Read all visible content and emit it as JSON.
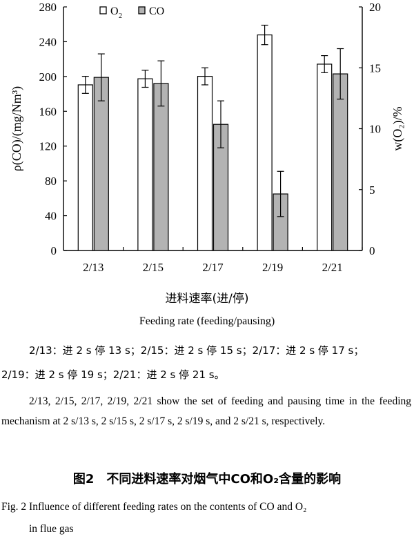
{
  "chart_data": {
    "type": "bar",
    "categories": [
      "2/13",
      "2/15",
      "2/17",
      "2/19",
      "2/21"
    ],
    "series": [
      {
        "name": "O2",
        "axis": "right",
        "color": "#ffffff",
        "values": [
          13.6,
          14.1,
          14.3,
          17.7,
          15.3
        ],
        "errors": [
          0.7,
          0.7,
          0.7,
          0.8,
          0.7
        ]
      },
      {
        "name": "CO",
        "axis": "left",
        "color": "#b3b3b3",
        "values": [
          199,
          192,
          145,
          65,
          203
        ],
        "errors": [
          27,
          26,
          27,
          26,
          29
        ]
      }
    ],
    "ylabel": "ρ(CO)/(mg/Nm³)",
    "y2label": "w(O₂)/%",
    "ylim": [
      0,
      280
    ],
    "y2lim": [
      0,
      20
    ],
    "yticks": [
      "0",
      "40",
      "80",
      "120",
      "160",
      "200",
      "240",
      "280"
    ],
    "y2ticks": [
      "0",
      "5",
      "10",
      "15",
      "20"
    ],
    "legend": {
      "position": "top-left",
      "entries": [
        "O",
        "CO"
      ],
      "o2_subscript": "2"
    },
    "xlabel_cn": "进料速率(进/停)",
    "xlabel_en": "Feeding rate (feeding/pausing)"
  },
  "notes": {
    "cn_line1": "2/13：进 2 s 停 13 s；2/15：进 2 s 停 15 s；2/17：进 2 s 停 17 s；",
    "cn_line2": "2/19：进 2 s 停 19 s；2/21：进 2 s 停 21 s。",
    "en": "2/13, 2/15, 2/17, 2/19, 2/21 show the set of feeding and pausing time in the feeding mechanism at 2 s/13 s, 2 s/15 s, 2 s/17 s, 2 s/19 s, and 2 s/21 s, respectively."
  },
  "figure": {
    "title_cn": "图2　不同进料速率对烟气中CO和O₂含量的影响",
    "caption_en_1": "Fig. 2  Influence of different feeding rates on the contents of CO and O₂",
    "caption_en_2": "in flue gas"
  }
}
